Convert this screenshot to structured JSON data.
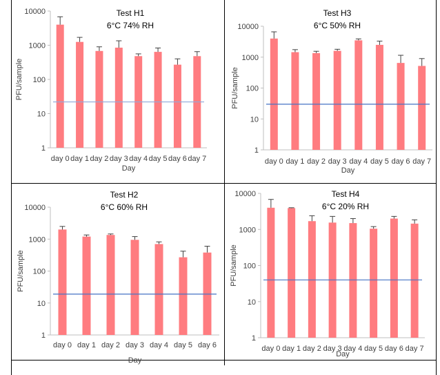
{
  "chart_data": [
    {
      "type": "bar",
      "title": "Test H1",
      "subtitle": "6°C 74% RH",
      "xlabel": "Day",
      "ylabel": "PFU/sample",
      "yscale": "log",
      "ylim": [
        1,
        10000
      ],
      "yticks": [
        "1",
        "10",
        "100",
        "1000",
        "10000"
      ],
      "categories": [
        "day 0",
        "day 1",
        "day 2",
        "day 3",
        "day 4",
        "day 5",
        "day 6",
        "day 7"
      ],
      "values": [
        4000,
        1250,
        680,
        850,
        480,
        640,
        270,
        480
      ],
      "error_upper": [
        6800,
        1700,
        900,
        1350,
        560,
        830,
        400,
        650
      ],
      "reference_line": 22,
      "bar_color": "#FF7C80",
      "line_color": "#8EA9DB"
    },
    {
      "type": "bar",
      "title": "Test H3",
      "subtitle": "6°C 50% RH",
      "xlabel": "Day",
      "ylabel": "PFU/sample",
      "yscale": "log",
      "ylim": [
        1,
        10000
      ],
      "yticks": [
        "1",
        "10",
        "100",
        "1000",
        "10000"
      ],
      "categories": [
        "day 0",
        "day 1",
        "day 2",
        "day 3",
        "day 4",
        "day 5",
        "day 6",
        "day 7"
      ],
      "values": [
        4000,
        1450,
        1350,
        1600,
        3500,
        2500,
        650,
        520
      ],
      "error_upper": [
        6600,
        1750,
        1550,
        1800,
        3900,
        3300,
        1150,
        900
      ],
      "reference_line": 30,
      "bar_color": "#FF7C80",
      "line_color": "#4472C4"
    },
    {
      "type": "bar",
      "title": "Test H2",
      "subtitle": "6°C 60% RH",
      "xlabel": "Day",
      "ylabel": "PFU/sample",
      "yscale": "log",
      "ylim": [
        1,
        10000
      ],
      "yticks": [
        "1",
        "10",
        "100",
        "1000",
        "10000"
      ],
      "categories": [
        "day 0",
        "day 1",
        "day 2",
        "day 3",
        "day 4",
        "day 5",
        "day 6"
      ],
      "values": [
        2000,
        1200,
        1350,
        950,
        700,
        270,
        380
      ],
      "error_upper": [
        2500,
        1350,
        1450,
        1200,
        820,
        420,
        600
      ],
      "reference_line": 19,
      "bar_color": "#FF7C80",
      "line_color": "#4472C4"
    },
    {
      "type": "bar",
      "title": "Test H4",
      "subtitle": "6°C 20% RH",
      "xlabel": "Day",
      "ylabel": "PFU/sample",
      "yscale": "log",
      "ylim": [
        1,
        10000
      ],
      "yticks": [
        "1",
        "10",
        "100",
        "1000",
        "10000"
      ],
      "categories": [
        "day 0",
        "day 1",
        "day 2",
        "day 3",
        "day 4",
        "day 5",
        "day 6",
        "day 7"
      ],
      "values": [
        4000,
        3900,
        1700,
        1550,
        1500,
        1050,
        2000,
        1450
      ],
      "error_upper": [
        6800,
        4000,
        2400,
        2300,
        2000,
        1200,
        2300,
        1850
      ],
      "reference_line": 40,
      "bar_color": "#FF7C80",
      "line_color": "#4472C4"
    }
  ]
}
